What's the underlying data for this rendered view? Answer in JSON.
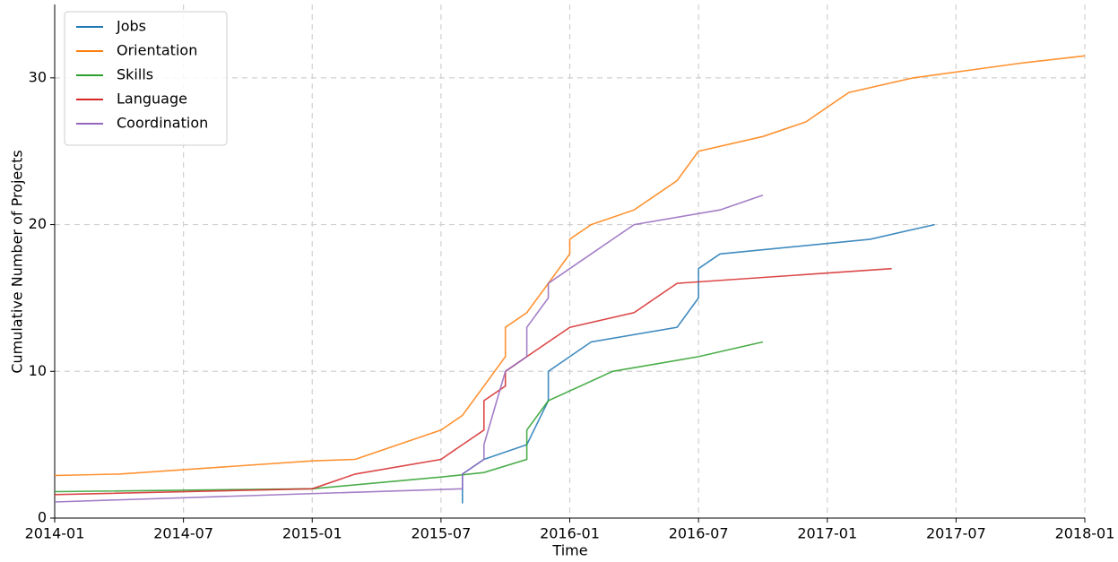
{
  "chart_data": {
    "type": "line",
    "xlabel": "Time",
    "ylabel": "Cumulative Number of Projects",
    "xlim": [
      "2014-01",
      "2018-01"
    ],
    "xticks": [
      "2014-01",
      "2014-07",
      "2015-01",
      "2015-07",
      "2016-01",
      "2016-07",
      "2017-01",
      "2017-07",
      "2018-01"
    ],
    "ylim": [
      0,
      35
    ],
    "yticks": [
      0,
      10,
      20,
      30
    ],
    "grid": true,
    "legend": "upper left",
    "series": [
      {
        "name": "Jobs",
        "color": "#1f77b4",
        "x": [
          "2015-08",
          "2015-08",
          "2015-09",
          "2015-11",
          "2015-12",
          "2015-12",
          "2016-01",
          "2016-02",
          "2016-06",
          "2016-07",
          "2016-07",
          "2016-08",
          "2017-03",
          "2017-06"
        ],
        "values": [
          1,
          3,
          4,
          5,
          8,
          10,
          11,
          12,
          13,
          15,
          17,
          18,
          19,
          20
        ]
      },
      {
        "name": "Orientation",
        "color": "#ff7f0e",
        "x": [
          "2014-01",
          "2014-04",
          "2015-01",
          "2015-03",
          "2015-05",
          "2015-07",
          "2015-08",
          "2015-09",
          "2015-10",
          "2015-10",
          "2015-11",
          "2015-12",
          "2016-01",
          "2016-01",
          "2016-02",
          "2016-04",
          "2016-05",
          "2016-06",
          "2016-07",
          "2016-10",
          "2016-12",
          "2017-02",
          "2017-05",
          "2017-10",
          "2018-01"
        ],
        "values": [
          2.9,
          3,
          3.9,
          4,
          5,
          6,
          7,
          9,
          11,
          13,
          14,
          16,
          18,
          19,
          20,
          21,
          22,
          23,
          25,
          26,
          27,
          29,
          30,
          31,
          31.5
        ]
      },
      {
        "name": "Skills",
        "color": "#2ca02c",
        "x": [
          "2014-01",
          "2015-01",
          "2015-07",
          "2015-09",
          "2015-11",
          "2015-11",
          "2015-12",
          "2016-03",
          "2016-07",
          "2016-10"
        ],
        "values": [
          1.8,
          2,
          2.8,
          3.1,
          4,
          6,
          8,
          10,
          11,
          12
        ]
      },
      {
        "name": "Language",
        "color": "#d62728",
        "x": [
          "2014-01",
          "2015-01",
          "2015-03",
          "2015-07",
          "2015-08",
          "2015-09",
          "2015-09",
          "2015-10",
          "2015-10",
          "2015-11",
          "2015-12",
          "2016-01",
          "2016-04",
          "2016-05",
          "2016-06",
          "2017-04"
        ],
        "values": [
          1.6,
          2,
          3,
          4,
          5,
          6,
          8,
          9,
          10,
          11,
          12,
          13,
          14,
          15,
          16,
          17
        ]
      },
      {
        "name": "Coordination",
        "color": "#9467bd",
        "x": [
          "2014-01",
          "2015-08",
          "2015-08",
          "2015-09",
          "2015-09",
          "2015-10",
          "2015-11",
          "2015-11",
          "2015-12",
          "2015-12",
          "2016-01",
          "2016-02",
          "2016-03",
          "2016-04",
          "2016-08",
          "2016-10"
        ],
        "values": [
          1.1,
          2,
          3,
          4,
          5,
          10,
          11,
          13,
          15,
          16,
          17,
          18,
          19,
          20,
          21,
          22
        ]
      }
    ]
  }
}
